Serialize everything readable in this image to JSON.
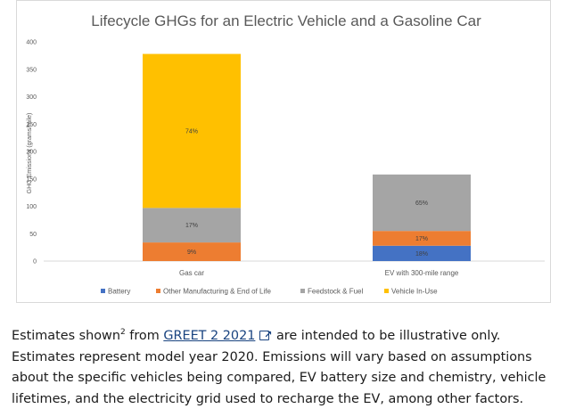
{
  "chart_data": {
    "type": "bar",
    "stacked": true,
    "title": "Lifecycle GHGs for an Electric Vehicle and a Gasoline Car",
    "xlabel": "",
    "ylabel": "GHG Emissions (grams/mile)",
    "categories": [
      "Gas car",
      "EV with 300-mile range"
    ],
    "ylim": [
      0,
      400
    ],
    "yticks": [
      "0",
      "50",
      "100",
      "150",
      "200",
      "250",
      "300",
      "350",
      "400"
    ],
    "legend_position": "bottom",
    "grid": false,
    "series": [
      {
        "name": "Battery",
        "color": "#4472c4",
        "values": [
          0,
          28
        ],
        "labels": [
          "",
          "18%"
        ]
      },
      {
        "name": "Other Manufacturing & End of Life",
        "color": "#ed7d31",
        "values": [
          34,
          27
        ],
        "labels": [
          "9%",
          "17%"
        ]
      },
      {
        "name": "Feedstock & Fuel",
        "color": "#a5a5a5",
        "values": [
          63,
          103
        ],
        "labels": [
          "17%",
          "65%"
        ]
      },
      {
        "name": "Vehicle In-Use",
        "color": "#ffc000",
        "values": [
          281,
          0
        ],
        "labels": [
          "74%",
          ""
        ]
      }
    ]
  },
  "caption": {
    "before_sup": "Estimates shown",
    "sup": "2",
    "after_sup": " from ",
    "link_text": "GREET 2 2021",
    "after_link": " are intended to be illustrative only. Estimates represent model year 2020. Emissions will vary based on assumptions about the specific vehicles being compared, EV battery size and chemistry, vehicle lifetimes, and the electricity grid used to recharge the EV, among other factors.",
    "link_icon": "external-link-icon"
  }
}
